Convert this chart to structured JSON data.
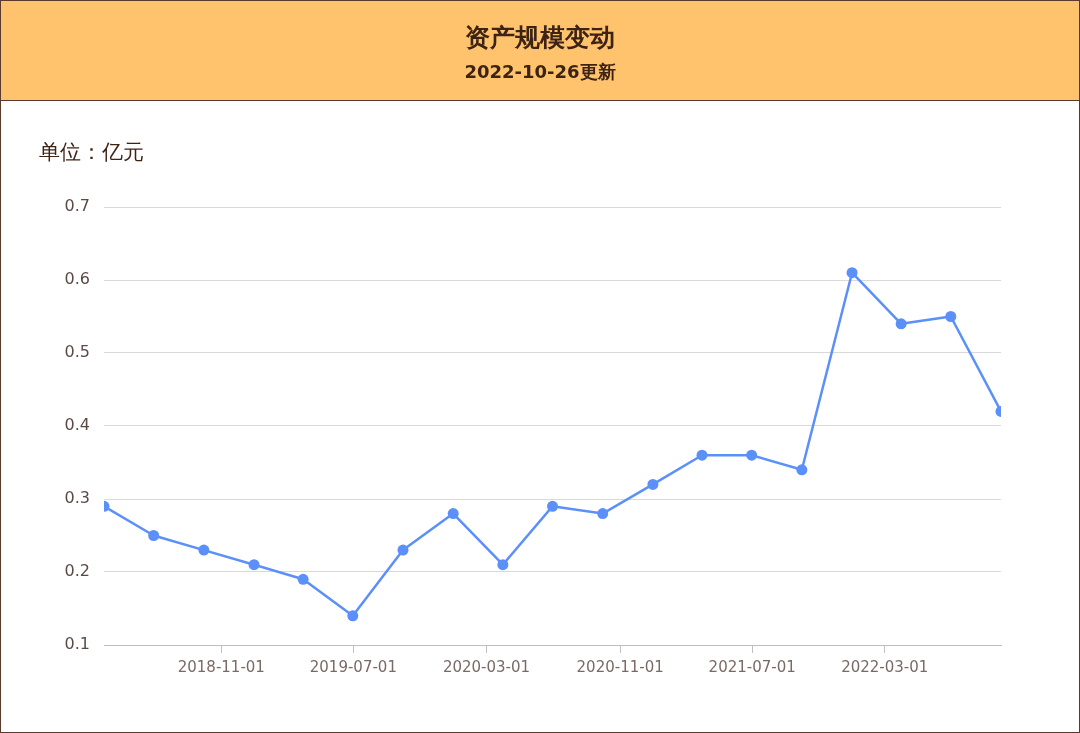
{
  "chart_data": {
    "type": "line",
    "title": "资产规模变动",
    "subtitle": "2022-10-26更新",
    "ylabel": "单位：亿元",
    "x": [
      "2018-03-31",
      "2018-06-30",
      "2018-09-30",
      "2018-12-31",
      "2019-03-31",
      "2019-06-30",
      "2019-09-30",
      "2019-12-31",
      "2020-03-31",
      "2020-06-30",
      "2020-09-30",
      "2020-12-31",
      "2021-03-31",
      "2021-06-30",
      "2021-09-30",
      "2021-12-31",
      "2022-03-31",
      "2022-06-30",
      "2022-09-30"
    ],
    "series": [
      {
        "color": "#5b8ff9",
        "values": [
          0.29,
          0.25,
          0.23,
          0.21,
          0.19,
          0.14,
          0.23,
          0.28,
          0.21,
          0.29,
          0.28,
          0.32,
          0.36,
          0.36,
          0.34,
          0.61,
          0.54,
          0.55,
          0.42
        ]
      }
    ],
    "xlim": [
      "2018-03-31",
      "2022-09-30"
    ],
    "xticks": [
      "2018-11-01",
      "2019-07-01",
      "2020-03-01",
      "2020-11-01",
      "2021-07-01",
      "2022-03-01"
    ],
    "ylim": [
      0.1,
      0.7
    ],
    "yticks": [
      0.1,
      0.2,
      0.3,
      0.4,
      0.5,
      0.6,
      0.7
    ],
    "grid": "y",
    "legend": false,
    "marker": "circle",
    "line_style": "solid"
  }
}
